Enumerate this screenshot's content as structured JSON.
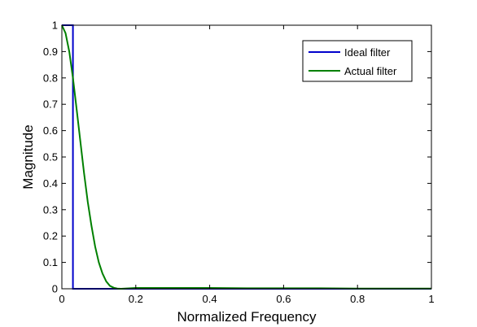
{
  "chart_data": {
    "type": "line",
    "title": "",
    "xlabel": "Normalized Frequency",
    "ylabel": "Magnitude",
    "xlim": [
      0,
      1
    ],
    "ylim": [
      0,
      1
    ],
    "x_ticks": [
      "0",
      "0.2",
      "0.4",
      "0.6",
      "0.8",
      "1"
    ],
    "y_ticks": [
      "0",
      "0.1",
      "0.2",
      "0.3",
      "0.4",
      "0.5",
      "0.6",
      "0.7",
      "0.8",
      "0.9",
      "1"
    ],
    "grid": false,
    "legend_position": "top-right",
    "series": [
      {
        "name": "Ideal filter",
        "color": "#0000cc",
        "x": [
          0,
          0.03,
          0.03,
          1
        ],
        "y": [
          1,
          1,
          0,
          0
        ]
      },
      {
        "name": "Actual filter",
        "color": "#008000",
        "x": [
          0,
          0.01,
          0.02,
          0.03,
          0.04,
          0.05,
          0.06,
          0.07,
          0.08,
          0.09,
          0.1,
          0.11,
          0.12,
          0.13,
          0.14,
          0.15,
          0.16,
          0.2,
          0.3,
          0.4,
          0.5,
          0.6,
          0.7,
          0.8,
          0.9,
          1.0
        ],
        "y": [
          1,
          0.97,
          0.9,
          0.8,
          0.68,
          0.56,
          0.44,
          0.33,
          0.24,
          0.16,
          0.1,
          0.058,
          0.028,
          0.011,
          0.004,
          0.001,
          0.0,
          0.003,
          0.003,
          0.003,
          0.002,
          0.002,
          0.002,
          0.001,
          0.001,
          0.001
        ]
      }
    ]
  }
}
